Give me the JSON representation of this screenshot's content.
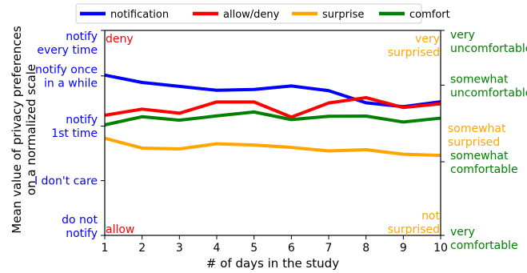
{
  "chart_data": {
    "type": "line",
    "xlabel": "# of days in the study",
    "ylabel": "Mean value of privacy preferences on a normalized scale",
    "x": [
      1,
      2,
      3,
      4,
      5,
      6,
      7,
      8,
      9,
      10
    ],
    "xlim": [
      1,
      10
    ],
    "ylim": [
      0,
      1
    ],
    "legend_position": "top-center",
    "series": [
      {
        "name": "notification",
        "color": "#0000ff",
        "values": [
          0.782,
          0.746,
          0.727,
          0.708,
          0.712,
          0.729,
          0.706,
          0.647,
          0.628,
          0.652
        ]
      },
      {
        "name": "allow/deny",
        "color": "#ff0000",
        "values": [
          0.586,
          0.616,
          0.596,
          0.651,
          0.651,
          0.577,
          0.646,
          0.672,
          0.624,
          0.642
        ]
      },
      {
        "name": "surprise",
        "color": "#ffa500",
        "values": [
          0.474,
          0.426,
          0.422,
          0.447,
          0.441,
          0.429,
          0.412,
          0.418,
          0.396,
          0.39
        ]
      },
      {
        "name": "comfort",
        "color": "#008000",
        "values": [
          0.539,
          0.579,
          0.562,
          0.583,
          0.602,
          0.565,
          0.581,
          0.582,
          0.553,
          0.572
        ]
      }
    ],
    "left_axis_ticks": [
      {
        "value": 1.0,
        "lines": [
          "notify",
          "every time"
        ]
      },
      {
        "value": 0.778,
        "lines": [
          "notify once",
          "in a while"
        ]
      },
      {
        "value": 0.533,
        "lines": [
          "notify",
          "1st time"
        ]
      },
      {
        "value": 0.267,
        "lines": [
          "I don't care"
        ]
      },
      {
        "value": 0.0,
        "lines": [
          "do not",
          "notify"
        ]
      }
    ],
    "right_axis_ticks": [
      {
        "value": 1.0,
        "lines": [
          "very",
          "uncomfortable"
        ]
      },
      {
        "value": 0.733,
        "lines": [
          "somewhat",
          "uncomfortable"
        ]
      },
      {
        "value": 0.359,
        "lines": [
          "somewhat",
          "comfortable"
        ]
      },
      {
        "value": 0.0,
        "lines": [
          "very",
          "comfortable"
        ]
      }
    ],
    "right_labels_extra": [
      {
        "value": 0.523,
        "lines": [
          "somewhat",
          "surprised"
        ]
      }
    ],
    "inner_annotations": [
      {
        "id": "deny",
        "text": "deny",
        "color": "#ff0000",
        "corner": "top-left",
        "lines": [
          "deny"
        ]
      },
      {
        "id": "allow",
        "text": "allow",
        "color": "#ff0000",
        "corner": "bottom-left",
        "lines": [
          "allow"
        ]
      },
      {
        "id": "very-surprised",
        "color": "#ffa500",
        "corner": "top-right",
        "lines": [
          "very",
          "surprised"
        ]
      },
      {
        "id": "not-surprised",
        "color": "#ffa500",
        "corner": "bottom-right",
        "lines": [
          "not",
          "surprised"
        ]
      }
    ],
    "colors": {
      "left_axis_text": "#0000ff",
      "right_axis_text": "#008000",
      "surprise_text": "#ffa500",
      "allow_deny_text": "#ff0000"
    }
  }
}
